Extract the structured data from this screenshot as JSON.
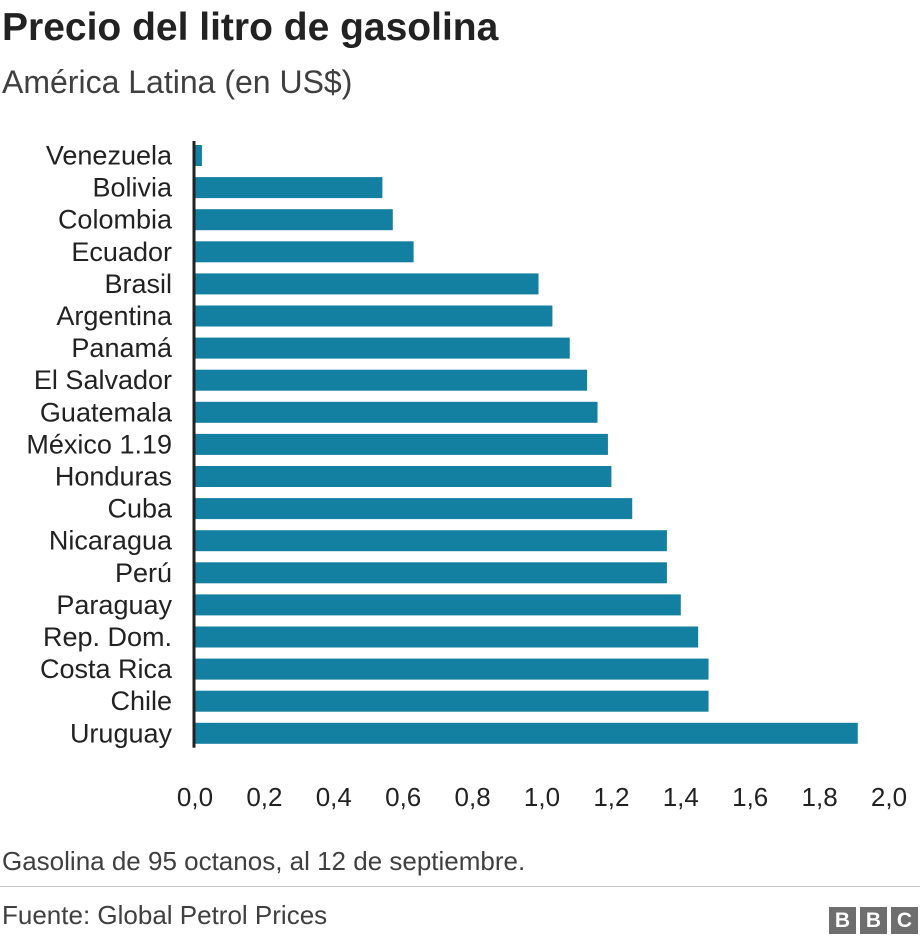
{
  "header": {
    "title": "Precio del litro de gasolina",
    "subtitle": "América Latina (en US$)"
  },
  "footer": {
    "note": "Gasolina de 95 octanos, al 12 de septiembre.",
    "source": "Fuente: Global Petrol Prices",
    "logo_letters": [
      "B",
      "B",
      "C"
    ]
  },
  "colors": {
    "bar": "#1380a1",
    "axis": "#222222",
    "text": "#222222"
  },
  "chart_data": {
    "type": "bar",
    "orientation": "horizontal",
    "title": "Precio del litro de gasolina",
    "subtitle": "América Latina (en US$)",
    "categories": [
      "Venezuela",
      "Bolivia",
      "Colombia",
      "Ecuador",
      "Brasil",
      "Argentina",
      "Panamá",
      "El Salvador",
      "Guatemala",
      "México 1.19",
      "Honduras",
      "Cuba",
      "Nicaragua",
      "Perú",
      "Paraguay",
      "Rep. Dom.",
      "Costa Rica",
      "Chile",
      "Uruguay"
    ],
    "values": [
      0.02,
      0.54,
      0.57,
      0.63,
      0.99,
      1.03,
      1.08,
      1.13,
      1.16,
      1.19,
      1.2,
      1.26,
      1.36,
      1.36,
      1.4,
      1.45,
      1.48,
      1.48,
      1.91
    ],
    "xlim": [
      0,
      2.0
    ],
    "xticks": [
      "0,0",
      "0,2",
      "0,4",
      "0,6",
      "0,8",
      "1,0",
      "1,2",
      "1,4",
      "1,6",
      "1,8",
      "2,0"
    ],
    "grid": false,
    "legend": "none"
  }
}
